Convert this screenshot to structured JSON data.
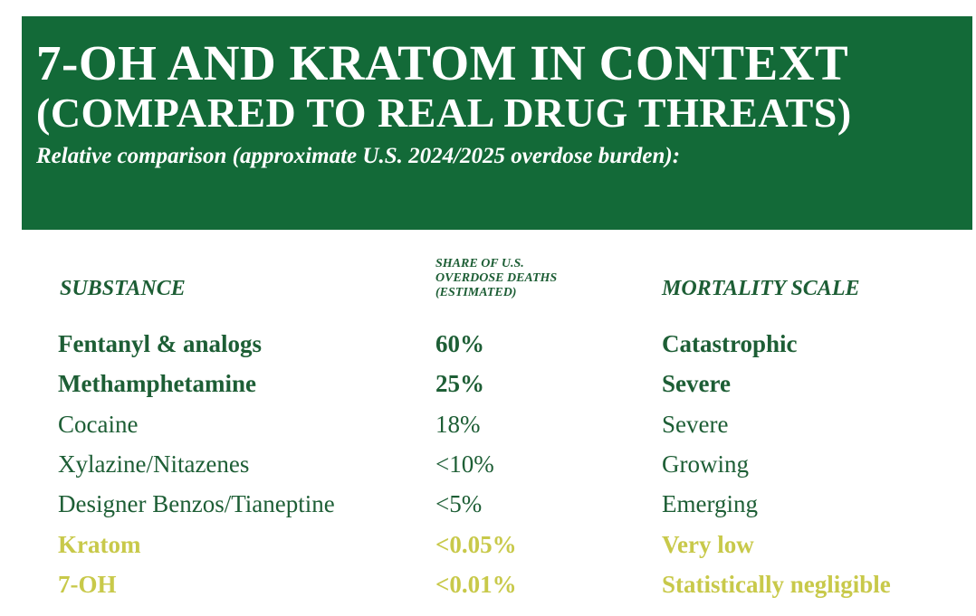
{
  "header": {
    "title_line1": "7-OH AND KRATOM IN CONTEXT",
    "title_line2": "(COMPARED TO REAL DRUG THREATS)",
    "subtitle": "Relative comparison (approximate U.S. 2024/2025 overdose burden):"
  },
  "colors": {
    "banner": "#136a38",
    "banner_text": "#ffffff",
    "dark_green": "#1d5e35",
    "highlight_yellow": "#c8c94a"
  },
  "chart_data": {
    "type": "table",
    "columns": {
      "substance": "SUBSTANCE",
      "share_lines": [
        "SHARE OF U.S.",
        "OVERDOSE DEATHS",
        "(ESTIMATED)"
      ],
      "mortality": "MORTALITY SCALE"
    },
    "rows": [
      {
        "substance": "Fentanyl & analogs",
        "share": "60%",
        "mortality": "Catastrophic",
        "style": "bold",
        "color": "#1d5e35"
      },
      {
        "substance": "Methamphetamine",
        "share": "25%",
        "mortality": "Severe",
        "style": "bold",
        "color": "#1d5e35"
      },
      {
        "substance": "Cocaine",
        "share": "18%",
        "mortality": "Severe",
        "style": "normal",
        "color": "#1d5e35"
      },
      {
        "substance": "Xylazine/Nitazenes",
        "share": "<10%",
        "mortality": "Growing",
        "style": "normal",
        "color": "#1d5e35"
      },
      {
        "substance": "Designer Benzos/Tianeptine",
        "share": "<5%",
        "mortality": "Emerging",
        "style": "normal",
        "color": "#1d5e35"
      },
      {
        "substance": "Kratom",
        "share": "<0.05%",
        "mortality": "Very low",
        "style": "bold",
        "color": "#c8c94a"
      },
      {
        "substance": "7-OH",
        "share": "<0.01%",
        "mortality": "Statistically negligible",
        "style": "bold",
        "color": "#c8c94a"
      }
    ]
  }
}
